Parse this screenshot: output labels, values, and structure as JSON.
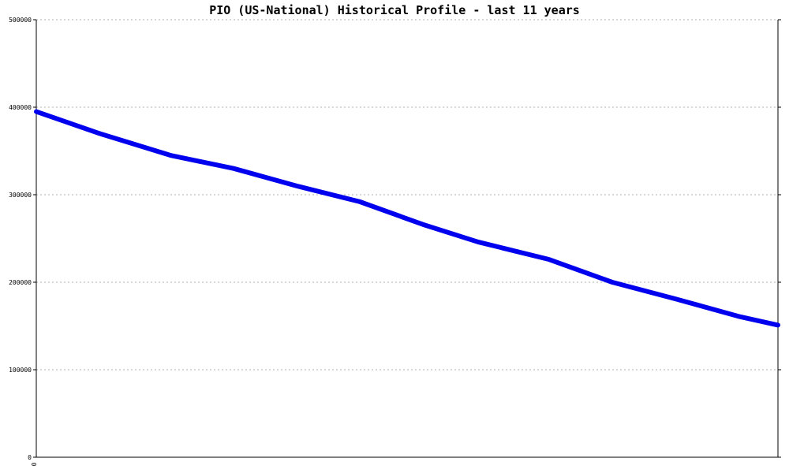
{
  "chart_data": {
    "type": "line",
    "title": "PIO (US-National) Historical Profile - last 11 years",
    "xlabel": "",
    "ylabel": "",
    "x_tick_labels": [
      "0"
    ],
    "y_tick_labels": [
      "0",
      "100000",
      "200000",
      "300000",
      "400000",
      "500000"
    ],
    "ylim": [
      0,
      500000
    ],
    "grid": true,
    "legend": "none",
    "series": [
      {
        "color": "#0000ee",
        "values": [
          395000,
          370000,
          345000,
          330000,
          310000,
          292000,
          266000,
          246000,
          226000,
          200000,
          181000,
          161000,
          151000
        ],
        "positions": [
          0,
          0.0851,
          0.1809,
          0.266,
          0.3511,
          0.4362,
          0.5213,
          0.5957,
          0.6915,
          0.7766,
          0.8617,
          0.9468,
          1
        ]
      }
    ]
  }
}
